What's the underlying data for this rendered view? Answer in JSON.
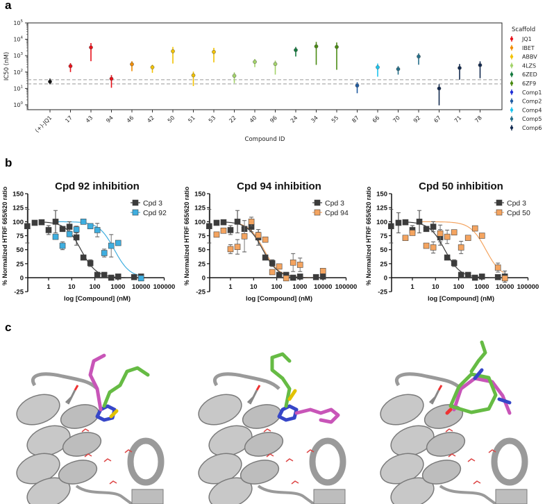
{
  "panels": {
    "a": "a",
    "b": "b",
    "c": "c"
  },
  "chart_data": [
    {
      "id": "a",
      "type": "scatter",
      "xlabel": "Compound ID",
      "ylabel": "IC50 (nM)",
      "yscale": "log",
      "ylim": [
        0.5,
        100000
      ],
      "yticks": [
        {
          "v": 1,
          "base": "10",
          "exp": "0"
        },
        {
          "v": 10,
          "base": "10",
          "exp": "1"
        },
        {
          "v": 100,
          "base": "10",
          "exp": "2"
        },
        {
          "v": 1000,
          "base": "10",
          "exp": "3"
        },
        {
          "v": 10000,
          "base": "10",
          "exp": "4"
        },
        {
          "v": 100000,
          "base": "10",
          "exp": "5"
        }
      ],
      "reference_lines": [
        34,
        19
      ],
      "legend": {
        "title": "Scaffold",
        "placement": "right",
        "entries": [
          {
            "name": "JQ1",
            "color": "#e8111a"
          },
          {
            "name": "IBET",
            "color": "#f08c00"
          },
          {
            "name": "ABBV",
            "color": "#f2c200"
          },
          {
            "name": "4LZS",
            "color": "#a3d36a"
          },
          {
            "name": "6ZED",
            "color": "#157a3e"
          },
          {
            "name": "6ZF9",
            "color": "#4a8a12"
          },
          {
            "name": "Comp1",
            "color": "#1f2fd6"
          },
          {
            "name": "Comp2",
            "color": "#1f5aa0"
          },
          {
            "name": "Comp4",
            "color": "#1cc4ee"
          },
          {
            "name": "Comp5",
            "color": "#26708a"
          },
          {
            "name": "Comp6",
            "color": "#132a50"
          }
        ]
      },
      "points": [
        {
          "id": "(+)-JQ1",
          "ic50": 26,
          "lo": 18,
          "hi": 40,
          "color": "#111111"
        },
        {
          "id": "17",
          "ic50": 230,
          "lo": 100,
          "hi": 350,
          "color": "#e8111a"
        },
        {
          "id": "43",
          "ic50": 3200,
          "lo": 460,
          "hi": 5900,
          "color": "#e8111a"
        },
        {
          "id": "94",
          "ic50": 39,
          "lo": 11,
          "hi": 65,
          "color": "#e8111a"
        },
        {
          "id": "46",
          "ic50": 300,
          "lo": 113,
          "hi": 460,
          "color": "#f08c00"
        },
        {
          "id": "42",
          "ic50": 196,
          "lo": 90,
          "hi": 280,
          "color": "#f2c200"
        },
        {
          "id": "50",
          "ic50": 1870,
          "lo": 330,
          "hi": 3400,
          "color": "#f2c200"
        },
        {
          "id": "51",
          "ic50": 63,
          "lo": 14,
          "hi": 106,
          "color": "#f2c200"
        },
        {
          "id": "53",
          "ic50": 1700,
          "lo": 390,
          "hi": 3000,
          "color": "#f2c200"
        },
        {
          "id": "22",
          "ic50": 59,
          "lo": 21,
          "hi": 96,
          "color": "#a3d36a"
        },
        {
          "id": "40",
          "ic50": 420,
          "lo": 200,
          "hi": 630,
          "color": "#a3d36a"
        },
        {
          "id": "96",
          "ic50": 310,
          "lo": 70,
          "hi": 500,
          "color": "#a3d36a"
        },
        {
          "id": "24",
          "ic50": 2200,
          "lo": 890,
          "hi": 3400,
          "color": "#157a3e"
        },
        {
          "id": "34",
          "ic50": 3700,
          "lo": 275,
          "hi": 6900,
          "color": "#4a8a12"
        },
        {
          "id": "55",
          "ic50": 3400,
          "lo": 138,
          "hi": 6400,
          "color": "#4a8a12"
        },
        {
          "id": "87",
          "ic50": 15,
          "lo": 5.1,
          "hi": 24,
          "color": "#1f5aa0"
        },
        {
          "id": "66",
          "ic50": 196,
          "lo": 52,
          "hi": 330,
          "color": "#1cc4ee"
        },
        {
          "id": "70",
          "ic50": 152,
          "lo": 70,
          "hi": 230,
          "color": "#26708a"
        },
        {
          "id": "92",
          "ic50": 890,
          "lo": 280,
          "hi": 1390,
          "color": "#26708a"
        },
        {
          "id": "67",
          "ic50": 10,
          "lo": 0.93,
          "hi": 18,
          "color": "#132a50"
        },
        {
          "id": "71",
          "ic50": 178,
          "lo": 34,
          "hi": 310,
          "color": "#132a50"
        },
        {
          "id": "78",
          "ic50": 265,
          "lo": 42,
          "hi": 450,
          "color": "#132a50"
        }
      ]
    },
    {
      "id": "b1",
      "type": "scatter",
      "title": "Cpd 92 inhibition",
      "xlabel": "log [Compound] (nM)",
      "ylabel": "% Normalized HTRF 665/620 ratio",
      "xscale": "log",
      "xlim": [
        0.11,
        100000
      ],
      "ylim": [
        -25,
        150
      ],
      "xticks": [
        "1",
        "10",
        "100",
        "1000",
        "10000",
        "100000"
      ],
      "yticks": [
        "-25",
        "0",
        "25",
        "50",
        "75",
        "100",
        "125",
        "150"
      ],
      "legend_placement": "top-right",
      "series": [
        {
          "name": "Cpd 3",
          "color": "#3b3b3b",
          "ic50": 25,
          "x": [
            0.12,
            0.25,
            0.5,
            1,
            2,
            4,
            8,
            16,
            32,
            64,
            128,
            256,
            512,
            1024,
            5000,
            10000
          ],
          "y": [
            92,
            98,
            99,
            85,
            100,
            87,
            91,
            72,
            36,
            26,
            5,
            5,
            0,
            2,
            1,
            2
          ],
          "sd": [
            30,
            2,
            2,
            8,
            20,
            4,
            9,
            14,
            4,
            6,
            4,
            2,
            1,
            1,
            1,
            1
          ]
        },
        {
          "name": "Cpd 92",
          "color": "#3eaee0",
          "ic50": 700,
          "x": [
            2,
            4,
            8,
            16,
            32,
            64,
            128,
            256,
            512,
            1024,
            10000
          ],
          "y": [
            73,
            57,
            78,
            86,
            100,
            92,
            85,
            44,
            57,
            62,
            -1
          ],
          "sd": [
            3,
            7,
            5,
            6,
            3,
            3,
            12,
            7,
            20,
            3,
            2
          ]
        }
      ]
    },
    {
      "id": "b2",
      "type": "scatter",
      "title": "Cpd 94 inhibition",
      "xlabel": "log [Compound] (nM)",
      "ylabel": "% Normalized HTRF 665/620 ratio",
      "xscale": "log",
      "xlim": [
        0.11,
        100000
      ],
      "ylim": [
        -25,
        150
      ],
      "xticks": [
        "1",
        "10",
        "100",
        "1000",
        "10000",
        "100000"
      ],
      "yticks": [
        "-25",
        "0",
        "25",
        "50",
        "75",
        "100",
        "125",
        "150"
      ],
      "legend_placement": "top-right",
      "series": [
        {
          "name": "Cpd 3",
          "color": "#3b3b3b",
          "ic50": 25,
          "x": [
            0.12,
            0.25,
            0.5,
            1,
            2,
            4,
            8,
            16,
            32,
            64,
            128,
            256,
            512,
            1024,
            5000,
            10000
          ],
          "y": [
            92,
            98,
            99,
            85,
            100,
            87,
            91,
            72,
            36,
            26,
            5,
            5,
            0,
            2,
            1,
            2
          ],
          "sd": [
            30,
            2,
            2,
            8,
            20,
            4,
            9,
            14,
            4,
            6,
            4,
            2,
            1,
            1,
            1,
            1
          ]
        },
        {
          "name": "Cpd 94",
          "color": "#f4a460",
          "ic50": 28,
          "x": [
            0.25,
            0.5,
            1,
            2,
            4,
            8,
            16,
            32,
            64,
            128,
            256,
            512,
            1024,
            10000
          ],
          "y": [
            77,
            84,
            51,
            55,
            74,
            100,
            76,
            68,
            10,
            20,
            -1,
            27,
            23,
            12
          ],
          "sd": [
            2,
            2,
            8,
            13,
            28,
            8,
            5,
            2,
            3,
            3,
            4,
            16,
            12,
            3
          ]
        }
      ]
    },
    {
      "id": "b3",
      "type": "scatter",
      "title": "Cpd 50 inhibition",
      "xlabel": "log [Compound] (nM)",
      "ylabel": "% Normalized HTRF 665/620 ratio",
      "xscale": "log",
      "xlim": [
        0.11,
        100000
      ],
      "ylim": [
        -25,
        150
      ],
      "xticks": [
        "1",
        "10",
        "100",
        "1000",
        "10000",
        "100000"
      ],
      "yticks": [
        "-25",
        "0",
        "25",
        "50",
        "75",
        "100",
        "125",
        "150"
      ],
      "legend_placement": "top-right",
      "series": [
        {
          "name": "Cpd 3",
          "color": "#3b3b3b",
          "ic50": 25,
          "x": [
            0.12,
            0.25,
            0.5,
            1,
            2,
            4,
            8,
            16,
            32,
            64,
            128,
            256,
            512,
            1024,
            5000,
            10000
          ],
          "y": [
            92,
            98,
            99,
            85,
            100,
            87,
            91,
            72,
            36,
            26,
            5,
            5,
            0,
            2,
            1,
            2
          ],
          "sd": [
            30,
            18,
            2,
            8,
            20,
            4,
            9,
            14,
            4,
            6,
            4,
            2,
            1,
            1,
            1,
            10
          ]
        },
        {
          "name": "Cpd 50",
          "color": "#f4a460",
          "ic50": 1500,
          "x": [
            0.5,
            1,
            4,
            8,
            16,
            32,
            64,
            128,
            256,
            512,
            1024,
            5000,
            10000
          ],
          "y": [
            71,
            80,
            57,
            54,
            79,
            73,
            81,
            54,
            71,
            88,
            75,
            18,
            -1
          ],
          "sd": [
            2,
            3,
            2,
            10,
            15,
            12,
            2,
            11,
            2,
            2,
            2,
            8,
            2
          ]
        }
      ]
    }
  ],
  "structures": [
    "Cpd 92 binding pose",
    "Cpd 94 binding pose",
    "Cpd 50 binding pose"
  ]
}
